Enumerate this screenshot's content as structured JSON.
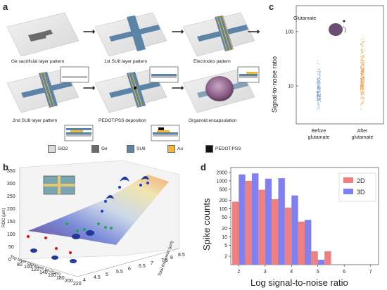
{
  "panels": {
    "a": "a",
    "b": "b",
    "c": "c",
    "d": "d"
  },
  "panel_a": {
    "steps": [
      "Ge sacrificial layer pattern",
      "1st SU8 layer pattern",
      "Electrodes pattern",
      "2nd SU8 layer pattern",
      "PEDOT:PSS deposition",
      "Organoid encapsulation"
    ],
    "legend": [
      {
        "label": "SiO2",
        "color": "#d9d9d9"
      },
      {
        "label": "Ge",
        "color": "#6b6b6b"
      },
      {
        "label": "SU8",
        "color": "#5b84a6"
      },
      {
        "label": "Au",
        "color": "#f4b82a"
      },
      {
        "label": "PEDOT:PSS",
        "color": "#111111"
      }
    ],
    "colors": {
      "substrate": "#e4e4e4",
      "ge": "#6b6b6b",
      "su8": "#5b84a6",
      "au": "#f4b82a",
      "pedot": "#111111",
      "organoid": "#8a6a8a"
    }
  },
  "panel_b": {
    "zlabel": "ROC (μm)",
    "xlabel": "Top layer exposure (mJ/cm²)",
    "ylabel": "Total thickness (μm)",
    "zticks": [
      "0",
      "50",
      "100",
      "150",
      "200",
      "250",
      "300",
      "350"
    ],
    "xticks": [
      "80",
      "100",
      "120",
      "140",
      "160",
      "180",
      "200",
      "220"
    ],
    "yticks": [
      "4",
      "4.5",
      "5",
      "5.5",
      "6",
      "6.5",
      "7",
      "7.5",
      "8",
      "8.5"
    ]
  },
  "chart_data": [
    {
      "type": "scatter",
      "panel": "c",
      "ylabel": "Signal-to-noise ratio",
      "yscale": "log",
      "ylim": [
        2,
        300
      ],
      "yticks": [
        "10",
        "100"
      ],
      "categories": [
        "Before\nglutamate",
        "After\nglutamate"
      ],
      "category_lines": [
        [
          "Before",
          "glutamate"
        ],
        [
          "After",
          "glutamate"
        ]
      ],
      "annotation": "Glutamate",
      "series": [
        {
          "color": "#3a7fb8",
          "min": 3,
          "max": 40,
          "median": 9
        },
        {
          "color": "#f08a1e",
          "min": 3,
          "max": 150,
          "median": 15
        }
      ]
    },
    {
      "type": "bar",
      "panel": "d",
      "xlabel": "Log signal-to-noise ratio",
      "ylabel": "Spike counts",
      "yscale": "log",
      "ylim": [
        1,
        3000
      ],
      "yticks": [
        "2",
        "5",
        "10",
        "20",
        "50",
        "100",
        "200",
        "500",
        "1000",
        "2000"
      ],
      "xticks": [
        "2",
        "3",
        "4",
        "5",
        "6",
        "7"
      ],
      "categories": [
        2.0,
        2.5,
        3.0,
        3.5,
        4.0,
        4.5,
        5.0,
        5.5,
        6.0,
        6.5
      ],
      "series": [
        {
          "name": "2D",
          "color": "#f08080",
          "values": [
            180,
            1000,
            480,
            220,
            110,
            35,
            3,
            3,
            0,
            1
          ]
        },
        {
          "name": "3D",
          "color": "#8080f0",
          "values": [
            1700,
            1850,
            1200,
            1250,
            300,
            40,
            1.5,
            0,
            1,
            1
          ]
        }
      ]
    }
  ]
}
